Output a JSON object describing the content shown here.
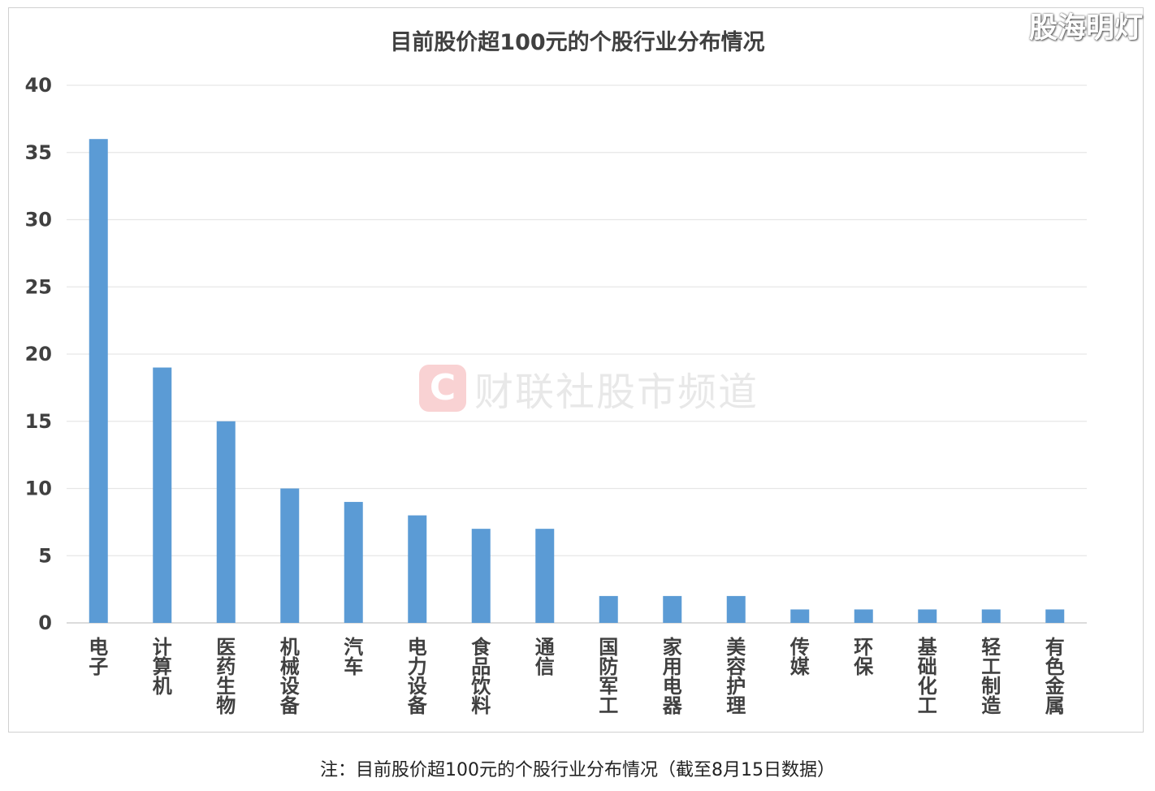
{
  "corner_mark": "股海明灯",
  "watermark": {
    "logo": "C",
    "text": "财联社股市频道"
  },
  "caption": "注：目前股价超100元的个股行业分布情况（截至8月15日数据）",
  "colors": {
    "bar": "#5b9bd5",
    "grid": "#e6e6e6",
    "text": "#404040"
  },
  "chart_data": {
    "type": "bar",
    "title": "目前股价超100元的个股行业分布情况",
    "xlabel": "",
    "ylabel": "",
    "categories": [
      "电子",
      "计算机",
      "医药生物",
      "机械设备",
      "汽车",
      "电力设备",
      "食品饮料",
      "通信",
      "国防军工",
      "家用电器",
      "美容护理",
      "传媒",
      "环保",
      "基础化工",
      "轻工制造",
      "有色金属"
    ],
    "values": [
      36,
      19,
      15,
      10,
      9,
      8,
      7,
      7,
      2,
      2,
      2,
      1,
      1,
      1,
      1,
      1
    ],
    "yticks": [
      0,
      5,
      10,
      15,
      20,
      25,
      30,
      35,
      40
    ],
    "ylim": [
      0,
      40
    ],
    "grid": true,
    "legend": "none"
  }
}
